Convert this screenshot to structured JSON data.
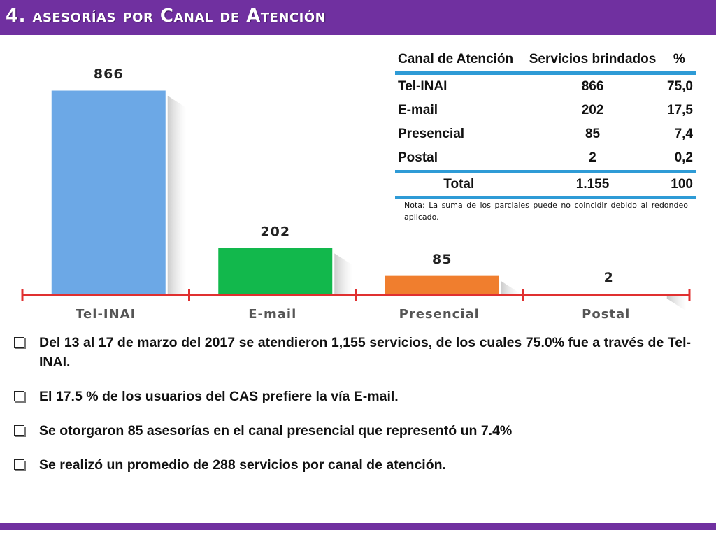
{
  "header": {
    "title": "4. asesorías por Canal de Atención"
  },
  "chart_data": {
    "type": "bar",
    "categories": [
      "Tel-INAI",
      "E-mail",
      "Presencial",
      "Postal"
    ],
    "values": [
      866,
      202,
      85,
      2
    ],
    "data_labels": [
      "866",
      "202",
      "85",
      "2"
    ],
    "colors": [
      "#6CA8E6",
      "#12B84C",
      "#F07E2E",
      "#C0C0C0"
    ],
    "axis_color": "#E03030",
    "title": "",
    "xlabel": "",
    "ylabel": "",
    "ylim": [
      0,
      866
    ],
    "grid": false
  },
  "table": {
    "headers": [
      "Canal de Atención",
      "Servicios brindados",
      "%"
    ],
    "rows": [
      {
        "channel": "Tel-INAI",
        "services": "866",
        "pct": "75,0"
      },
      {
        "channel": "E-mail",
        "services": "202",
        "pct": "17,5"
      },
      {
        "channel": "Presencial",
        "services": "85",
        "pct": "7,4"
      },
      {
        "channel": "Postal",
        "services": "2",
        "pct": "0,2"
      }
    ],
    "total": {
      "label": "Total",
      "services": "1.155",
      "pct": "100"
    },
    "rule_color": "#2E9BD6"
  },
  "note": "Nota: La suma de los parciales puede no coincidir debido al redondeo aplicado.",
  "bullets": [
    "Del 13 al 17 de marzo del 2017 se atendieron 1,155 servicios, de los cuales 75.0% fue a través de Tel-INAI.",
    "El 17.5 % de los usuarios del CAS prefiere la vía E-mail.",
    "Se otorgaron 85 asesorías en el canal presencial que representó un 7.4%",
    "Se realizó un promedio de 288 servicios por canal de atención."
  ],
  "theme": {
    "accent": "#7030A0"
  }
}
